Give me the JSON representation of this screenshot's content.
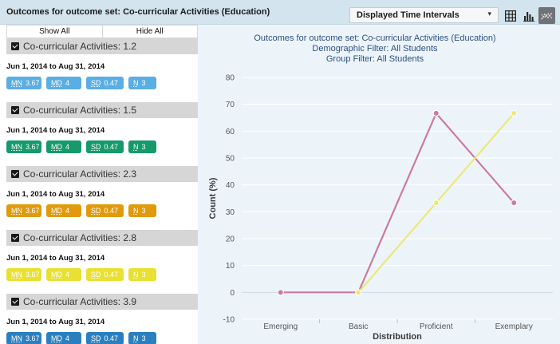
{
  "header": {
    "title": "Outcomes for outcome set: Co-curricular Activities (Education)",
    "interval_select": "Displayed Time Intervals",
    "caret": "▾",
    "views": [
      "table-view",
      "bar-view",
      "line-view"
    ]
  },
  "left_panel": {
    "show_all": "Show All",
    "hide_all": "Hide All",
    "groups": [
      {
        "label": "Co-curricular Activities: 1.2",
        "date_range": "Jun 1, 2014 to Aug 31, 2014",
        "color": "#5aaee3",
        "text_color": "#ffffff",
        "stats": {
          "mn_key": "MN",
          "mn": "3.67",
          "md_key": "MD",
          "md": "4",
          "sd_key": "SD",
          "sd": "0.47",
          "n_key": "N",
          "n": "3"
        }
      },
      {
        "label": "Co-curricular Activities: 1.5",
        "date_range": "Jun 1, 2014 to Aug 31, 2014",
        "color": "#16996b",
        "text_color": "#ffffff",
        "stats": {
          "mn_key": "MN",
          "mn": "3.67",
          "md_key": "MD",
          "md": "4",
          "sd_key": "SD",
          "sd": "0.47",
          "n_key": "N",
          "n": "3"
        }
      },
      {
        "label": "Co-curricular Activities: 2.3",
        "date_range": "Jun 1, 2014 to Aug 31, 2014",
        "color": "#e09a0c",
        "text_color": "#ffffff",
        "stats": {
          "mn_key": "MN",
          "mn": "3.67",
          "md_key": "MD",
          "md": "4",
          "sd_key": "SD",
          "sd": "0.47",
          "n_key": "N",
          "n": "3"
        }
      },
      {
        "label": "Co-curricular Activities: 2.8",
        "date_range": "Jun 1, 2014 to Aug 31, 2014",
        "color": "#e8e033",
        "text_color": "#ffffff",
        "stats": {
          "mn_key": "MN",
          "mn": "3.67",
          "md_key": "MD",
          "md": "4",
          "sd_key": "SD",
          "sd": "0.47",
          "n_key": "N",
          "n": "3"
        }
      },
      {
        "label": "Co-curricular Activities: 3.9",
        "date_range": "Jun 1, 2014 to Aug 31, 2014",
        "color": "#2a7fc0",
        "text_color": "#ffffff",
        "stats": {
          "mn_key": "MN",
          "mn": "3.67",
          "md_key": "MD",
          "md": "4",
          "sd_key": "SD",
          "sd": "0.47",
          "n_key": "N",
          "n": "3"
        }
      }
    ]
  },
  "chart_data": {
    "type": "line",
    "title": [
      "Outcomes for outcome set: Co-curricular Activities (Education)",
      "Demographic Filter: All Students",
      "Group Filter: All Students"
    ],
    "categories": [
      "Emerging",
      "Basic",
      "Proficient",
      "Exemplary"
    ],
    "xlabel": "Distribution",
    "ylabel": "Count (%)",
    "ylim": [
      -10,
      80
    ],
    "yticks": [
      -10,
      0,
      10,
      20,
      30,
      40,
      50,
      60,
      70,
      80
    ],
    "grid": true,
    "series": [
      {
        "values": [
          0,
          0,
          66.67,
          33.33
        ],
        "color": "#cc7a9e"
      },
      {
        "values": [
          null,
          0,
          33.33,
          66.67
        ],
        "color": "#ece87a"
      }
    ]
  }
}
